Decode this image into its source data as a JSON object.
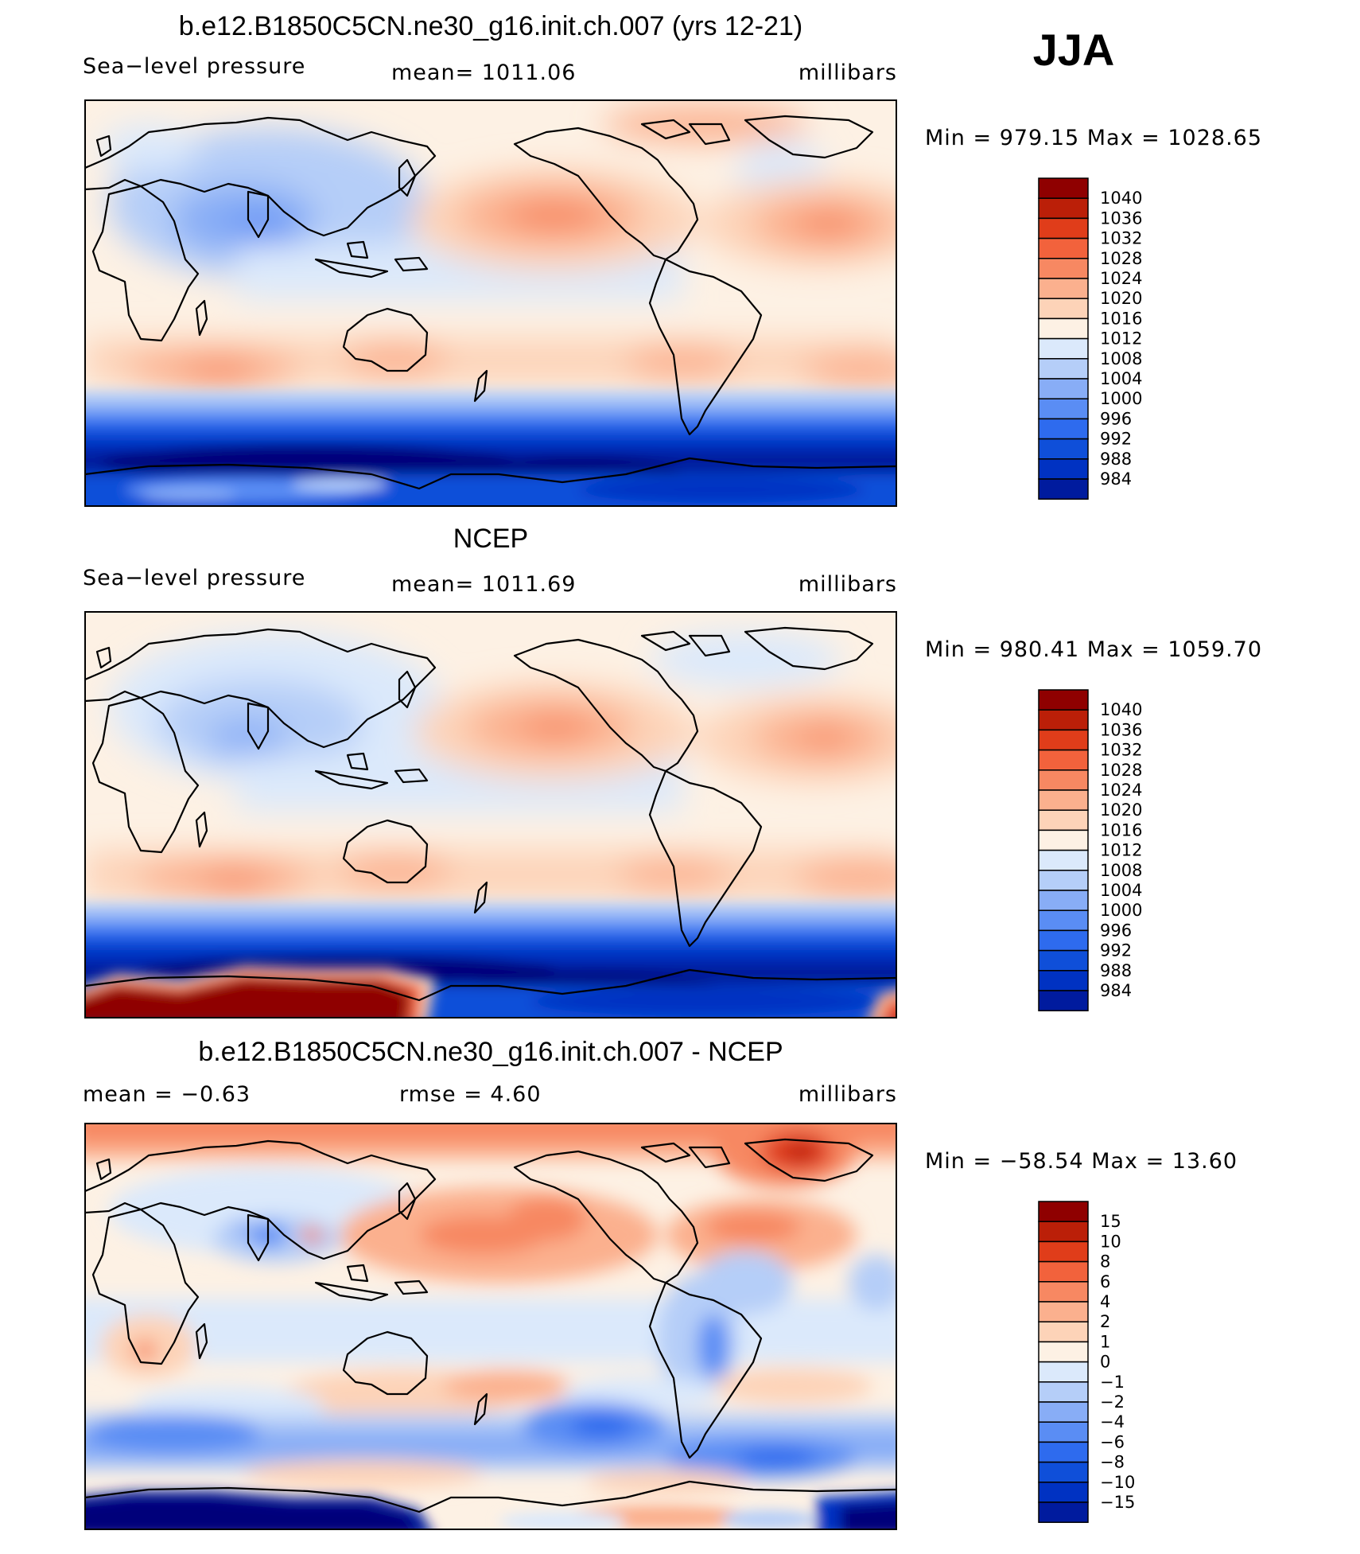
{
  "season": "JJA",
  "colors": {
    "spl": [
      "#00007a",
      "#001b9e",
      "#0032c2",
      "#0f4fd9",
      "#2e6bee",
      "#5a8df4",
      "#88adf6",
      "#b5cef8",
      "#dbe9fb",
      "#fdf1e4",
      "#fdd3b8",
      "#fbb08e",
      "#f78862",
      "#f2623c",
      "#e03d1a",
      "#bb1f08",
      "#8f0000"
    ],
    "diff": [
      "#00007a",
      "#001b9e",
      "#0032c2",
      "#0f4fd9",
      "#2e6bee",
      "#5a8df4",
      "#88adf6",
      "#b5cef8",
      "#dbe9fb",
      "#fdf1e4",
      "#fdd3b8",
      "#fbb08e",
      "#f78862",
      "#f2623c",
      "#e03d1a",
      "#bb1f08",
      "#8f0000"
    ]
  },
  "panels": [
    {
      "id": "model",
      "title": "b.e12.B1850C5CN.ne30_g16.init.ch.007 (yrs 12-21)",
      "left": "Sea−level pressure",
      "center": "mean=  1011.06",
      "right": "millibars",
      "minmax": "Min  =  979.15  Max  =  1028.65",
      "ticks": [
        "1040",
        "1036",
        "1032",
        "1028",
        "1024",
        "1020",
        "1016",
        "1012",
        "1008",
        "1004",
        "1000",
        "996",
        "992",
        "988",
        "984"
      ]
    },
    {
      "id": "ncep",
      "title": "NCEP",
      "left": "Sea−level pressure",
      "center": "mean=  1011.69",
      "right": "millibars",
      "minmax": "Min  =  980.41  Max  =  1059.70",
      "ticks": [
        "1040",
        "1036",
        "1032",
        "1028",
        "1024",
        "1020",
        "1016",
        "1012",
        "1008",
        "1004",
        "1000",
        "996",
        "992",
        "988",
        "984"
      ]
    },
    {
      "id": "diff",
      "title": "b.e12.B1850C5CN.ne30_g16.init.ch.007 - NCEP",
      "left": "mean  =    −0.63",
      "center": "rmse  =     4.60",
      "right": "millibars",
      "minmax": "Min  =  −58.54  Max  =    13.60",
      "ticks": [
        "15",
        "10",
        "8",
        "6",
        "4",
        "2",
        "1",
        "0",
        "−1",
        "−2",
        "−4",
        "−6",
        "−8",
        "−10",
        "−15"
      ]
    }
  ]
}
